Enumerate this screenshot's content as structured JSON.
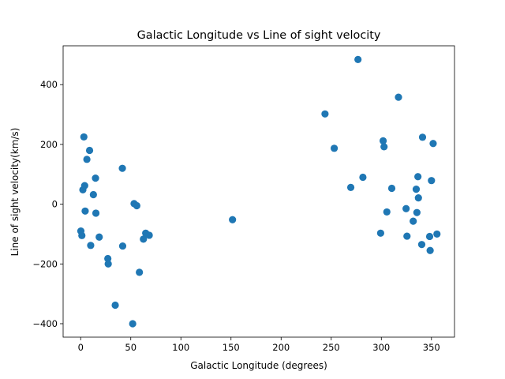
{
  "chart_data": {
    "type": "scatter",
    "title": "Galactic Longitude vs Line of sight velocity",
    "xlabel": "Galactic Longitude (degrees)",
    "ylabel": "Line of sight velocity(km/s)",
    "xlim": [
      -17.5,
      373
    ],
    "ylim": [
      -445,
      530
    ],
    "xticks": [
      0,
      50,
      100,
      150,
      200,
      250,
      300,
      350
    ],
    "yticks": [
      -400,
      -200,
      0,
      200,
      400
    ],
    "ytick_labels": [
      "−400",
      "−200",
      "0",
      "200",
      "400"
    ],
    "grid": false,
    "color": "#1f77b4",
    "points": [
      {
        "x": 0.2,
        "y": -90
      },
      {
        "x": 1.2,
        "y": -105
      },
      {
        "x": 2.2,
        "y": 48
      },
      {
        "x": 3.2,
        "y": 225
      },
      {
        "x": 4.0,
        "y": 62
      },
      {
        "x": 4.5,
        "y": -23
      },
      {
        "x": 6.2,
        "y": 150
      },
      {
        "x": 8.9,
        "y": 180
      },
      {
        "x": 10.0,
        "y": -138
      },
      {
        "x": 12.7,
        "y": 32
      },
      {
        "x": 14.8,
        "y": 87
      },
      {
        "x": 15.2,
        "y": -30
      },
      {
        "x": 18.5,
        "y": -110
      },
      {
        "x": 27.1,
        "y": -182
      },
      {
        "x": 27.5,
        "y": -200
      },
      {
        "x": 34.5,
        "y": -338
      },
      {
        "x": 41.6,
        "y": 120
      },
      {
        "x": 41.9,
        "y": -140
      },
      {
        "x": 51.9,
        "y": -400
      },
      {
        "x": 53.3,
        "y": 2
      },
      {
        "x": 56.0,
        "y": -5
      },
      {
        "x": 58.6,
        "y": -228
      },
      {
        "x": 62.6,
        "y": -117
      },
      {
        "x": 64.9,
        "y": -97
      },
      {
        "x": 68.4,
        "y": -104
      },
      {
        "x": 151.5,
        "y": -52
      },
      {
        "x": 243.8,
        "y": 302
      },
      {
        "x": 253.0,
        "y": 187
      },
      {
        "x": 269.5,
        "y": 56
      },
      {
        "x": 276.7,
        "y": 484
      },
      {
        "x": 281.6,
        "y": 90
      },
      {
        "x": 299.3,
        "y": -97
      },
      {
        "x": 301.8,
        "y": 212
      },
      {
        "x": 302.7,
        "y": 192
      },
      {
        "x": 305.5,
        "y": -26
      },
      {
        "x": 310.4,
        "y": 53
      },
      {
        "x": 317.1,
        "y": 358
      },
      {
        "x": 324.7,
        "y": -15
      },
      {
        "x": 325.6,
        "y": -107
      },
      {
        "x": 331.8,
        "y": -57
      },
      {
        "x": 334.8,
        "y": 50
      },
      {
        "x": 335.5,
        "y": -28
      },
      {
        "x": 336.5,
        "y": 92
      },
      {
        "x": 337.0,
        "y": 21
      },
      {
        "x": 340.3,
        "y": -135
      },
      {
        "x": 341.1,
        "y": 224
      },
      {
        "x": 348.2,
        "y": -108
      },
      {
        "x": 348.7,
        "y": -155
      },
      {
        "x": 350.0,
        "y": 79
      },
      {
        "x": 351.7,
        "y": 203
      },
      {
        "x": 355.5,
        "y": -100
      }
    ]
  }
}
